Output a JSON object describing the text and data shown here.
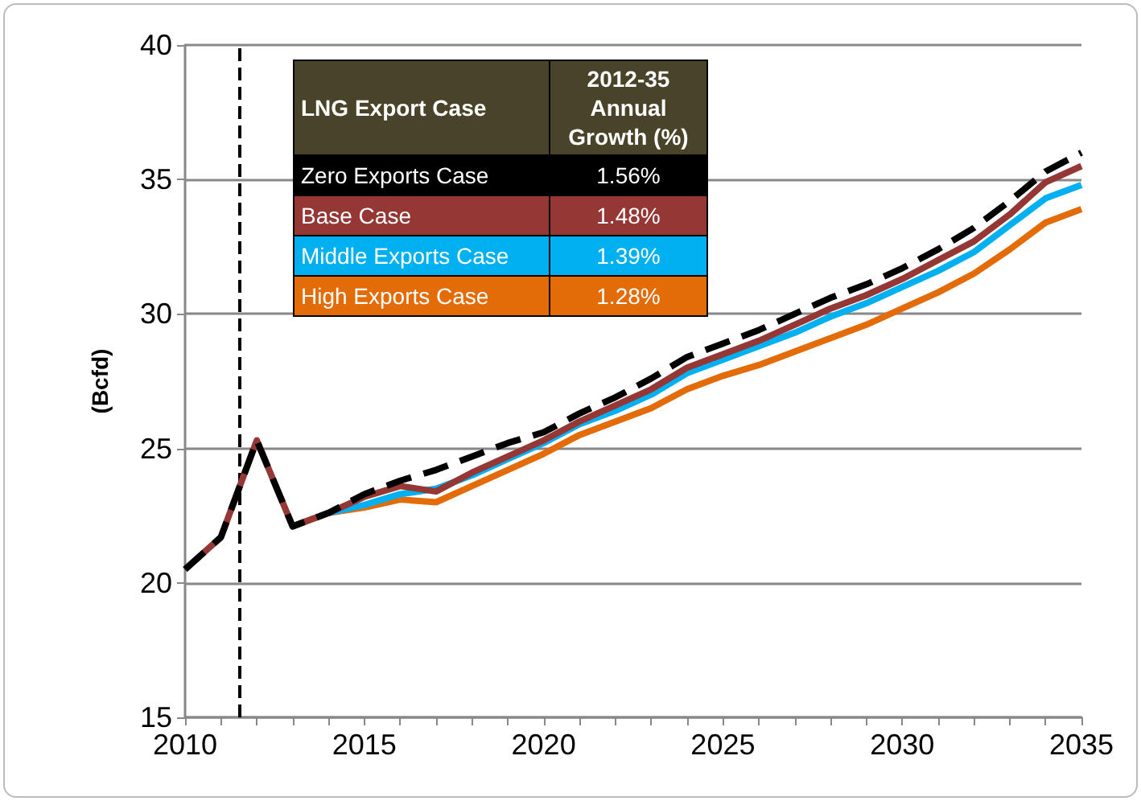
{
  "chart_data": {
    "type": "line",
    "ylabel": "(Bcfd)",
    "legend_title": "LNG Export Case",
    "x": [
      2010,
      2011,
      2012,
      2013,
      2014,
      2015,
      2016,
      2017,
      2018,
      2019,
      2020,
      2021,
      2022,
      2023,
      2024,
      2025,
      2026,
      2027,
      2028,
      2029,
      2030,
      2031,
      2032,
      2033,
      2034,
      2035
    ],
    "series": [
      {
        "name": "Zero Exports Case",
        "color": "#000000",
        "line_style": "dashed",
        "values": [
          20.5,
          21.7,
          25.3,
          22.1,
          22.6,
          23.3,
          23.8,
          24.2,
          24.7,
          25.2,
          25.6,
          26.3,
          26.9,
          27.6,
          28.4,
          28.9,
          29.4,
          30.0,
          30.6,
          31.1,
          31.7,
          32.4,
          33.2,
          34.2,
          35.3,
          36.0
        ]
      },
      {
        "name": "Base Case",
        "color": "#953735",
        "values": [
          20.5,
          21.7,
          25.3,
          22.1,
          22.6,
          23.2,
          23.6,
          23.4,
          24.1,
          24.7,
          25.3,
          26.0,
          26.6,
          27.2,
          28.0,
          28.5,
          29.0,
          29.6,
          30.2,
          30.7,
          31.3,
          32.0,
          32.7,
          33.7,
          34.9,
          35.5
        ]
      },
      {
        "name": "Middle Exports Case",
        "color": "#00b0f0",
        "values": [
          null,
          null,
          null,
          null,
          22.6,
          22.9,
          23.3,
          23.5,
          24.0,
          24.6,
          25.2,
          25.9,
          26.4,
          27.0,
          27.8,
          28.3,
          28.8,
          29.3,
          29.9,
          30.4,
          31.0,
          31.6,
          32.3,
          33.3,
          34.3,
          34.8
        ]
      },
      {
        "name": "High Exports Case",
        "color": "#e36c09",
        "values": [
          null,
          null,
          null,
          22.1,
          22.6,
          22.8,
          23.1,
          23.0,
          23.6,
          24.2,
          24.8,
          25.5,
          26.0,
          26.5,
          27.2,
          27.7,
          28.1,
          28.6,
          29.1,
          29.6,
          30.2,
          30.8,
          31.5,
          32.4,
          33.4,
          33.9
        ]
      }
    ],
    "annotations": [
      "2012-35 Annual Growth (%)",
      "1.56%",
      "1.48%",
      "1.39%",
      "1.28%"
    ],
    "xlim": [
      2010,
      2035
    ],
    "xticks": [
      2010,
      {
        "value": 2011,
        "label": null
      },
      {
        "value": 2012,
        "label": null
      },
      {
        "value": 2013,
        "label": null
      },
      {
        "value": 2014,
        "label": null
      },
      2015,
      {
        "value": 2016,
        "label": null
      },
      {
        "value": 2017,
        "label": null
      },
      {
        "value": 2018,
        "label": null
      },
      {
        "value": 2019,
        "label": null
      },
      2020,
      {
        "value": 2021,
        "label": null
      },
      {
        "value": 2022,
        "label": null
      },
      {
        "value": 2023,
        "label": null
      },
      {
        "value": 2024,
        "label": null
      },
      2025,
      {
        "value": 2026,
        "label": null
      },
      {
        "value": 2027,
        "label": null
      },
      {
        "value": 2028,
        "label": null
      },
      {
        "value": 2029,
        "label": null
      },
      2030,
      {
        "value": 2031,
        "label": null
      },
      {
        "value": 2032,
        "label": null
      },
      {
        "value": 2033,
        "label": null
      },
      {
        "value": 2034,
        "label": null
      },
      2035
    ],
    "ylim": [
      15,
      40
    ],
    "yticks": [
      15,
      20,
      25,
      30,
      35,
      40
    ],
    "grid": "y",
    "legend": "top left",
    "marker": "none",
    "line_style": "solid",
    "ref_lines": [
      {
        "axis": "x",
        "value": 2011.5,
        "color": "#000000",
        "line_style": "dashed"
      }
    ]
  }
}
